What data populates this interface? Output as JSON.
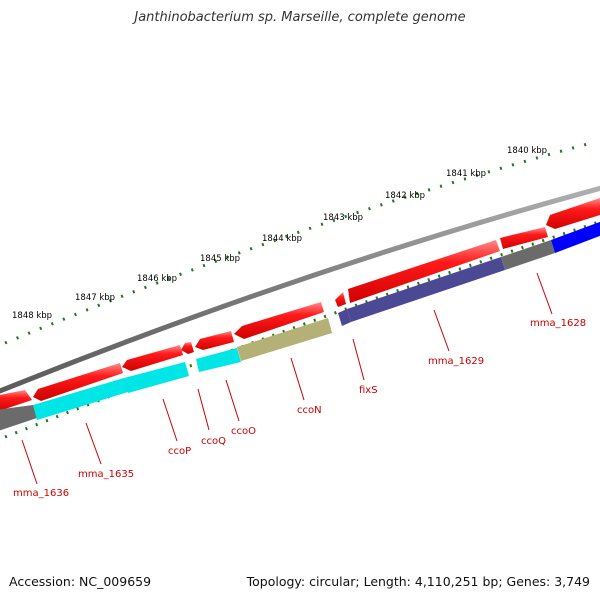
{
  "title": "Janthinobacterium sp. Marseille, complete genome",
  "footer": {
    "accession": "Accession: NC_009659",
    "summary": "Topology: circular; Length: 4,110,251 bp; Genes: 3,749"
  },
  "colors": {
    "backbone": "#7f7f7f",
    "cds_forward": "#ff0000",
    "cds_forward_highlight": "#ff9a9a",
    "cog_cyan": "#00e5e5",
    "cog_olive": "#b5b075",
    "cog_navy": "#4b4894",
    "cog_blue": "#0000ff",
    "cog_gray": "#6b6b6b",
    "tick": "#1e7a1e",
    "gene_label": "#cc0000"
  },
  "scale_labels": [
    "1848 kbp",
    "1847 kbp",
    "1846 kbp",
    "1845 kbp",
    "1844 kbp",
    "1843 kbp",
    "1842 kbp",
    "1841 kbp",
    "1840 kbp"
  ],
  "gene_labels": [
    "mma_1636",
    "mma_1635",
    "ccoP",
    "ccoQ",
    "ccoO",
    "ccoN",
    "fixS",
    "mma_1629",
    "mma_1628"
  ]
}
